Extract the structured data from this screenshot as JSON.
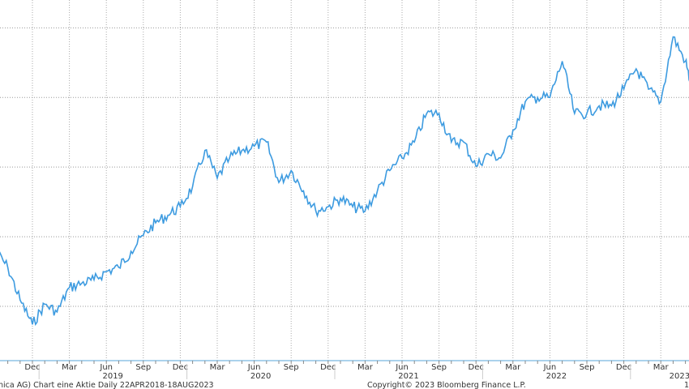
{
  "chart_data": {
    "type": "line",
    "title": "",
    "xlabel": "",
    "ylabel": "",
    "grid": true,
    "line_color": "#3d9be0",
    "ylim": [
      -0.78,
      4.4
    ],
    "y_gridlines": [
      0,
      1,
      2,
      3,
      4
    ],
    "x": [
      "2018-09",
      "2018-10",
      "2018-11",
      "2018-12",
      "2019-01",
      "2019-02",
      "2019-03",
      "2019-04",
      "2019-05",
      "2019-06",
      "2019-07",
      "2019-08",
      "2019-09",
      "2019-10",
      "2019-11",
      "2019-12",
      "2020-01",
      "2020-02",
      "2020-03",
      "2020-04",
      "2020-05",
      "2020-06",
      "2020-07",
      "2020-08",
      "2020-09",
      "2020-10",
      "2020-11",
      "2020-12",
      "2021-01",
      "2021-02",
      "2021-03",
      "2021-04",
      "2021-05",
      "2021-06",
      "2021-07",
      "2021-08",
      "2021-09",
      "2021-10",
      "2021-11",
      "2021-12",
      "2022-01",
      "2022-02",
      "2022-03",
      "2022-04",
      "2022-05",
      "2022-06",
      "2022-07",
      "2022-08",
      "2022-09",
      "2022-10",
      "2022-11",
      "2022-12",
      "2023-01",
      "2023-02",
      "2023-03",
      "2023-04",
      "2023-05",
      "2023-05-15"
    ],
    "values": [
      0.79,
      0.56,
      0.09,
      -0.26,
      0.03,
      -0.08,
      0.27,
      0.33,
      0.38,
      0.5,
      0.56,
      0.79,
      1.02,
      1.2,
      1.31,
      1.43,
      1.72,
      2.24,
      1.84,
      2.13,
      2.24,
      2.3,
      2.36,
      1.78,
      1.95,
      1.66,
      1.37,
      1.43,
      1.55,
      1.43,
      1.37,
      1.66,
      1.95,
      2.13,
      2.36,
      2.77,
      2.77,
      2.36,
      2.36,
      2.01,
      2.19,
      2.13,
      2.53,
      2.94,
      3.0,
      3.0,
      3.52,
      2.77,
      2.77,
      2.88,
      2.88,
      3.12,
      3.41,
      3.12,
      2.94,
      3.87,
      3.52,
      3.17
    ],
    "month_ticks": [
      {
        "label": "Dec",
        "date": "2018-12"
      },
      {
        "label": "Mar",
        "date": "2019-03"
      },
      {
        "label": "Jun",
        "date": "2019-06"
      },
      {
        "label": "Sep",
        "date": "2019-09"
      },
      {
        "label": "Dec",
        "date": "2019-12"
      },
      {
        "label": "Mar",
        "date": "2020-03"
      },
      {
        "label": "Jun",
        "date": "2020-06"
      },
      {
        "label": "Sep",
        "date": "2020-09"
      },
      {
        "label": "Dec",
        "date": "2020-12"
      },
      {
        "label": "Mar",
        "date": "2021-03"
      },
      {
        "label": "Jun",
        "date": "2021-06"
      },
      {
        "label": "Sep",
        "date": "2021-09"
      },
      {
        "label": "Dec",
        "date": "2021-12"
      },
      {
        "label": "Mar",
        "date": "2022-03"
      },
      {
        "label": "Jun",
        "date": "2022-06"
      },
      {
        "label": "Sep",
        "date": "2022-09"
      },
      {
        "label": "Dec",
        "date": "2022-12"
      },
      {
        "label": "Mar",
        "date": "2023-03"
      }
    ],
    "year_labels": [
      {
        "label": "2019",
        "date": "2019-06"
      },
      {
        "label": "2020",
        "date": "2020-06"
      },
      {
        "label": "2021",
        "date": "2021-06"
      },
      {
        "label": "2022",
        "date": "2022-06"
      },
      {
        "label": "2023",
        "date": "2023-04"
      }
    ]
  },
  "footer": {
    "left": "nica AG) Chart eine Aktie  Daily 22APR2018-18AUG2023",
    "center": "Copyright© 2023 Bloomberg Finance L.P.",
    "right": "1"
  }
}
